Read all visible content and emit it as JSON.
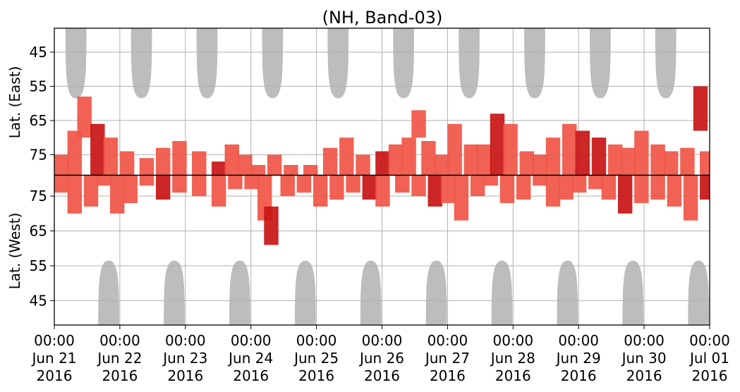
{
  "chart_data": {
    "type": "heatmap",
    "title": "(NH, Band-03)",
    "ylabel_top": "Lat. (East)",
    "ylabel_bottom": "Lat. (West)",
    "y_ticks_east": [
      "45",
      "55",
      "65",
      "75"
    ],
    "y_ticks_west": [
      "75",
      "65",
      "55",
      "45"
    ],
    "x_ticks": [
      {
        "time": "00:00",
        "date": "Jun 21",
        "year": "2016"
      },
      {
        "time": "00:00",
        "date": "Jun 22",
        "year": "2016"
      },
      {
        "time": "00:00",
        "date": "Jun 23",
        "year": "2016"
      },
      {
        "time": "00:00",
        "date": "Jun 24",
        "year": "2016"
      },
      {
        "time": "00:00",
        "date": "Jun 25",
        "year": "2016"
      },
      {
        "time": "00:00",
        "date": "Jun 26",
        "year": "2016"
      },
      {
        "time": "00:00",
        "date": "Jun 27",
        "year": "2016"
      },
      {
        "time": "00:00",
        "date": "Jun 28",
        "year": "2016"
      },
      {
        "time": "00:00",
        "date": "Jun 29",
        "year": "2016"
      },
      {
        "time": "00:00",
        "date": "Jun 30",
        "year": "2016"
      },
      {
        "time": "00:00",
        "date": "Jul 01",
        "year": "2016"
      }
    ],
    "x_range": [
      "2016-06-21",
      "2016-07-01"
    ],
    "east_lat_range": [
      38,
      81
    ],
    "west_lat_range": [
      38,
      81
    ],
    "grid": true,
    "colors": {
      "shade": "#bdbdbd",
      "low": "#f05545",
      "high": "#c81414",
      "divider": "#000000",
      "grid": "#b0b0b0"
    },
    "shade_east": [
      {
        "day": 0.33,
        "peak_lat": 58.5
      },
      {
        "day": 1.33,
        "peak_lat": 58.5
      },
      {
        "day": 2.33,
        "peak_lat": 58.5
      },
      {
        "day": 3.33,
        "peak_lat": 58.5
      },
      {
        "day": 4.33,
        "peak_lat": 58.5
      },
      {
        "day": 5.33,
        "peak_lat": 58.5
      },
      {
        "day": 6.33,
        "peak_lat": 58.5
      },
      {
        "day": 7.33,
        "peak_lat": 58.5
      },
      {
        "day": 8.33,
        "peak_lat": 58.5
      },
      {
        "day": 9.33,
        "peak_lat": 58.5
      }
    ],
    "shade_west": [
      {
        "day": 0.83,
        "peak_lat": 56.5
      },
      {
        "day": 1.83,
        "peak_lat": 56.5
      },
      {
        "day": 2.83,
        "peak_lat": 56.5
      },
      {
        "day": 3.83,
        "peak_lat": 56.5
      },
      {
        "day": 4.83,
        "peak_lat": 56.5
      },
      {
        "day": 5.83,
        "peak_lat": 56.5
      },
      {
        "day": 6.83,
        "peak_lat": 56.5
      },
      {
        "day": 7.83,
        "peak_lat": 56.5
      },
      {
        "day": 8.83,
        "peak_lat": 56.5
      },
      {
        "day": 9.83,
        "peak_lat": 56.5
      }
    ],
    "echo_east": [
      [
        0.0,
        75,
        81,
        1
      ],
      [
        0.2,
        68,
        81,
        1
      ],
      [
        0.35,
        58,
        70,
        1
      ],
      [
        0.55,
        66,
        81,
        2
      ],
      [
        0.75,
        70,
        81,
        1
      ],
      [
        1.0,
        74,
        81,
        1
      ],
      [
        1.3,
        76,
        81,
        1
      ],
      [
        1.55,
        73,
        81,
        1
      ],
      [
        1.8,
        71,
        81,
        1
      ],
      [
        2.1,
        74,
        81,
        1
      ],
      [
        2.4,
        77,
        81,
        2
      ],
      [
        2.6,
        72,
        81,
        1
      ],
      [
        2.8,
        75,
        81,
        1
      ],
      [
        3.0,
        78,
        81,
        1
      ],
      [
        3.25,
        75,
        81,
        1
      ],
      [
        3.5,
        78,
        81,
        1
      ],
      [
        3.8,
        78,
        81,
        1
      ],
      [
        4.1,
        73,
        81,
        1
      ],
      [
        4.35,
        70,
        81,
        1
      ],
      [
        4.6,
        75,
        81,
        1
      ],
      [
        4.9,
        74,
        81,
        2
      ],
      [
        5.1,
        72,
        81,
        1
      ],
      [
        5.3,
        70,
        81,
        1
      ],
      [
        5.45,
        62,
        70,
        1
      ],
      [
        5.6,
        71,
        81,
        1
      ],
      [
        5.8,
        75,
        81,
        1
      ],
      [
        6.0,
        66,
        81,
        1
      ],
      [
        6.25,
        72,
        81,
        1
      ],
      [
        6.45,
        72,
        81,
        1
      ],
      [
        6.65,
        63,
        81,
        2
      ],
      [
        6.85,
        66,
        81,
        1
      ],
      [
        7.1,
        74,
        81,
        1
      ],
      [
        7.3,
        75,
        81,
        1
      ],
      [
        7.5,
        70,
        81,
        1
      ],
      [
        7.75,
        66,
        81,
        1
      ],
      [
        7.95,
        68,
        81,
        2
      ],
      [
        8.2,
        70,
        81,
        2
      ],
      [
        8.45,
        72,
        81,
        1
      ],
      [
        8.65,
        73,
        81,
        1
      ],
      [
        8.85,
        68,
        81,
        1
      ],
      [
        9.1,
        72,
        81,
        1
      ],
      [
        9.3,
        74,
        81,
        1
      ],
      [
        9.55,
        73,
        81,
        1
      ],
      [
        9.75,
        55,
        68,
        2
      ],
      [
        9.85,
        74,
        81,
        1
      ]
    ],
    "echo_west": [
      [
        0.0,
        76,
        81,
        1
      ],
      [
        0.2,
        70,
        81,
        1
      ],
      [
        0.45,
        72,
        81,
        1
      ],
      [
        0.65,
        78,
        81,
        1
      ],
      [
        0.85,
        70,
        81,
        1
      ],
      [
        1.05,
        73,
        81,
        1
      ],
      [
        1.3,
        78,
        81,
        1
      ],
      [
        1.55,
        74,
        81,
        2
      ],
      [
        1.8,
        76,
        81,
        1
      ],
      [
        2.1,
        75,
        81,
        1
      ],
      [
        2.4,
        72,
        81,
        1
      ],
      [
        2.65,
        77,
        81,
        1
      ],
      [
        2.9,
        77,
        81,
        1
      ],
      [
        3.1,
        68,
        81,
        1
      ],
      [
        3.2,
        61,
        72,
        2
      ],
      [
        3.45,
        75,
        81,
        1
      ],
      [
        3.7,
        76,
        81,
        1
      ],
      [
        3.95,
        72,
        81,
        1
      ],
      [
        4.2,
        74,
        81,
        1
      ],
      [
        4.45,
        76,
        81,
        1
      ],
      [
        4.7,
        74,
        81,
        2
      ],
      [
        4.9,
        72,
        81,
        1
      ],
      [
        5.2,
        76,
        81,
        1
      ],
      [
        5.45,
        75,
        81,
        1
      ],
      [
        5.7,
        72,
        81,
        2
      ],
      [
        5.9,
        73,
        81,
        1
      ],
      [
        6.1,
        68,
        81,
        1
      ],
      [
        6.35,
        75,
        81,
        1
      ],
      [
        6.55,
        78,
        81,
        1
      ],
      [
        6.8,
        73,
        81,
        1
      ],
      [
        7.05,
        74,
        81,
        1
      ],
      [
        7.3,
        78,
        81,
        1
      ],
      [
        7.5,
        72,
        81,
        1
      ],
      [
        7.7,
        74,
        81,
        1
      ],
      [
        7.9,
        76,
        81,
        1
      ],
      [
        8.15,
        77,
        81,
        1
      ],
      [
        8.35,
        74,
        81,
        1
      ],
      [
        8.6,
        70,
        81,
        2
      ],
      [
        8.85,
        73,
        81,
        1
      ],
      [
        9.1,
        74,
        81,
        1
      ],
      [
        9.35,
        72,
        81,
        1
      ],
      [
        9.6,
        68,
        81,
        1
      ],
      [
        9.85,
        74,
        81,
        2
      ]
    ]
  }
}
